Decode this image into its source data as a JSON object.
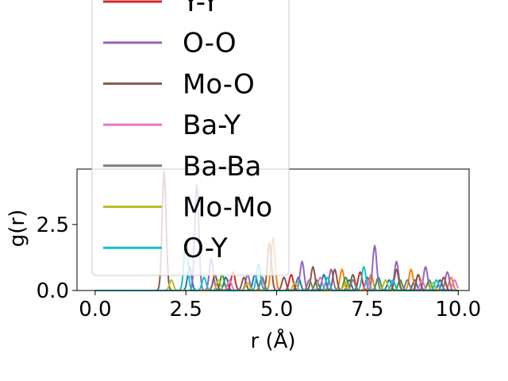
{
  "chart_data": {
    "type": "line",
    "title": "",
    "xlabel": "r (Å)",
    "ylabel": "g(r)",
    "xlim": [
      -0.5,
      10.3
    ],
    "ylim": [
      0,
      4.6
    ],
    "xticks": [
      {
        "value": 0.0,
        "label": "0.0"
      },
      {
        "value": 2.5,
        "label": "2.5"
      },
      {
        "value": 5.0,
        "label": "5.0"
      },
      {
        "value": 7.5,
        "label": "7.5"
      },
      {
        "value": 10.0,
        "label": "10.0"
      }
    ],
    "yticks": [
      {
        "value": 0.0,
        "label": "0.0"
      },
      {
        "value": 2.5,
        "label": "2.5"
      }
    ],
    "grid": false,
    "legend_position": "upper-left, overlapping the top of the axes",
    "series": [
      {
        "name": "",
        "color": "#1f77b4",
        "peaks": [
          [
            2.6,
            0.9
          ],
          [
            3.6,
            0.5
          ],
          [
            4.4,
            0.6
          ],
          [
            5.6,
            0.5
          ],
          [
            6.3,
            0.6
          ],
          [
            7.0,
            0.4
          ],
          [
            7.5,
            0.5
          ],
          [
            8.1,
            0.4
          ],
          [
            8.8,
            0.4
          ],
          [
            9.5,
            0.4
          ]
        ]
      },
      {
        "name": "",
        "color": "#ff7f0e",
        "peaks": [
          [
            4.9,
            2.0
          ],
          [
            6.8,
            0.8
          ],
          [
            7.6,
            0.6
          ],
          [
            8.7,
            0.8
          ],
          [
            9.8,
            0.5
          ]
        ]
      },
      {
        "name": "",
        "color": "#2ca02c",
        "peaks": [
          [
            3.5,
            0.6
          ],
          [
            4.6,
            0.5
          ],
          [
            6.1,
            0.4
          ],
          [
            6.9,
            0.5
          ],
          [
            7.8,
            0.5
          ],
          [
            8.4,
            0.4
          ],
          [
            9.2,
            0.4
          ]
        ]
      },
      {
        "name": "Y-Y",
        "color": "#d62728",
        "peaks": [
          [
            3.8,
            0.7
          ],
          [
            5.4,
            0.6
          ],
          [
            7.3,
            0.7
          ],
          [
            8.9,
            0.6
          ]
        ]
      },
      {
        "name": "O-O",
        "color": "#9467bd",
        "peaks": [
          [
            2.8,
            4.0
          ],
          [
            3.2,
            1.2
          ],
          [
            4.2,
            0.6
          ],
          [
            5.7,
            1.1
          ],
          [
            6.5,
            0.8
          ],
          [
            7.7,
            1.7
          ],
          [
            8.3,
            1.1
          ],
          [
            9.1,
            0.9
          ],
          [
            9.7,
            0.7
          ]
        ]
      },
      {
        "name": "Mo-O",
        "color": "#8c564b",
        "peaks": [
          [
            1.9,
            4.5
          ],
          [
            3.3,
            0.6
          ],
          [
            4.1,
            0.5
          ],
          [
            4.8,
            1.8
          ],
          [
            5.2,
            0.5
          ],
          [
            6.0,
            0.9
          ],
          [
            6.6,
            0.8
          ],
          [
            7.1,
            0.6
          ],
          [
            8.3,
            0.8
          ],
          [
            8.9,
            0.6
          ],
          [
            9.6,
            0.5
          ]
        ]
      },
      {
        "name": "Ba-Y",
        "color": "#e377c2",
        "peaks": [
          [
            3.7,
            0.4
          ],
          [
            4.6,
            0.4
          ],
          [
            6.2,
            0.5
          ],
          [
            7.5,
            0.4
          ],
          [
            9.0,
            0.4
          ],
          [
            9.9,
            0.4
          ]
        ]
      },
      {
        "name": "Ba-Ba",
        "color": "#7f7f7f",
        "peaks": [
          [
            4.6,
            0.5
          ],
          [
            5.9,
            0.4
          ],
          [
            7.1,
            0.4
          ],
          [
            8.6,
            0.4
          ]
        ]
      },
      {
        "name": "Mo-Mo",
        "color": "#bcbd22",
        "peaks": [
          [
            2.1,
            0.4
          ],
          [
            3.4,
            0.4
          ],
          [
            4.2,
            0.3
          ],
          [
            5.5,
            0.3
          ],
          [
            6.9,
            0.3
          ],
          [
            8.0,
            0.4
          ],
          [
            9.3,
            0.3
          ]
        ]
      },
      {
        "name": "O-Y",
        "color": "#17becf",
        "peaks": [
          [
            2.5,
            1.9
          ],
          [
            3.0,
            0.5
          ],
          [
            4.5,
            1.0
          ],
          [
            6.4,
            0.5
          ],
          [
            7.4,
            0.9
          ],
          [
            8.2,
            0.4
          ],
          [
            9.4,
            0.4
          ]
        ]
      }
    ]
  }
}
